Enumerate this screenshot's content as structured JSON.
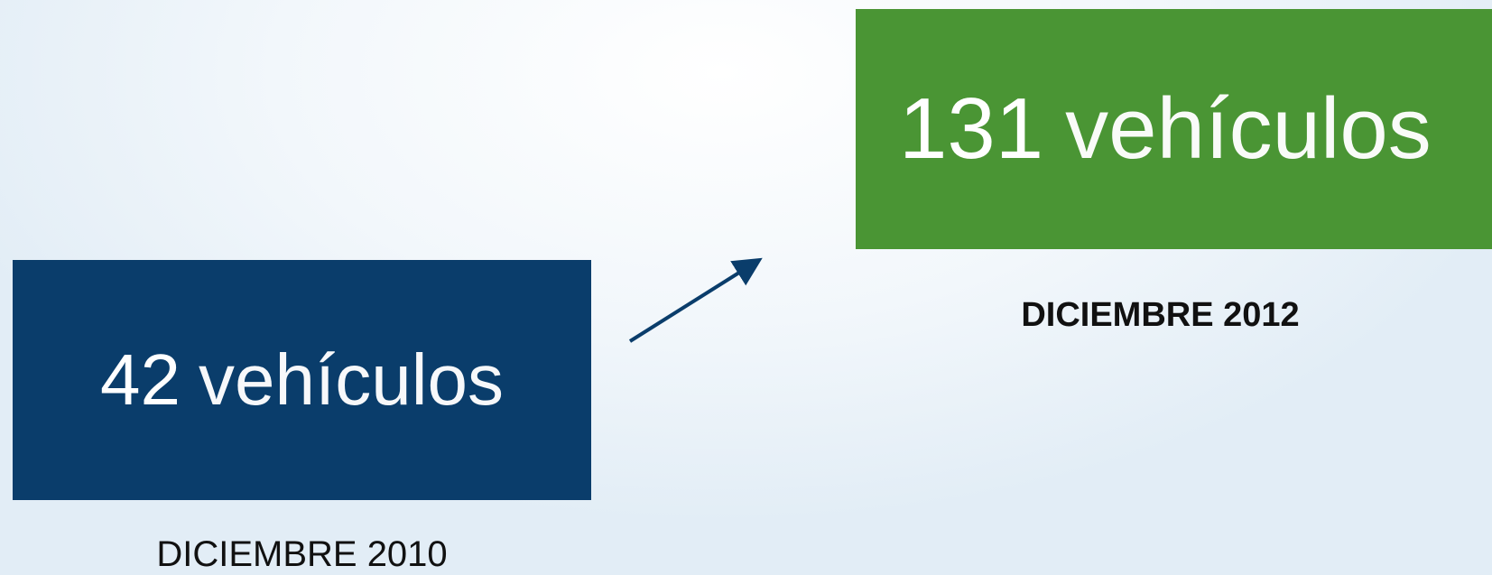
{
  "boxes": [
    {
      "number": 42,
      "unit": "vehículos",
      "date": "DICIEMBRE 2010"
    },
    {
      "number": 131,
      "unit": "vehículos",
      "date": "DICIEMBRE 2012"
    }
  ]
}
